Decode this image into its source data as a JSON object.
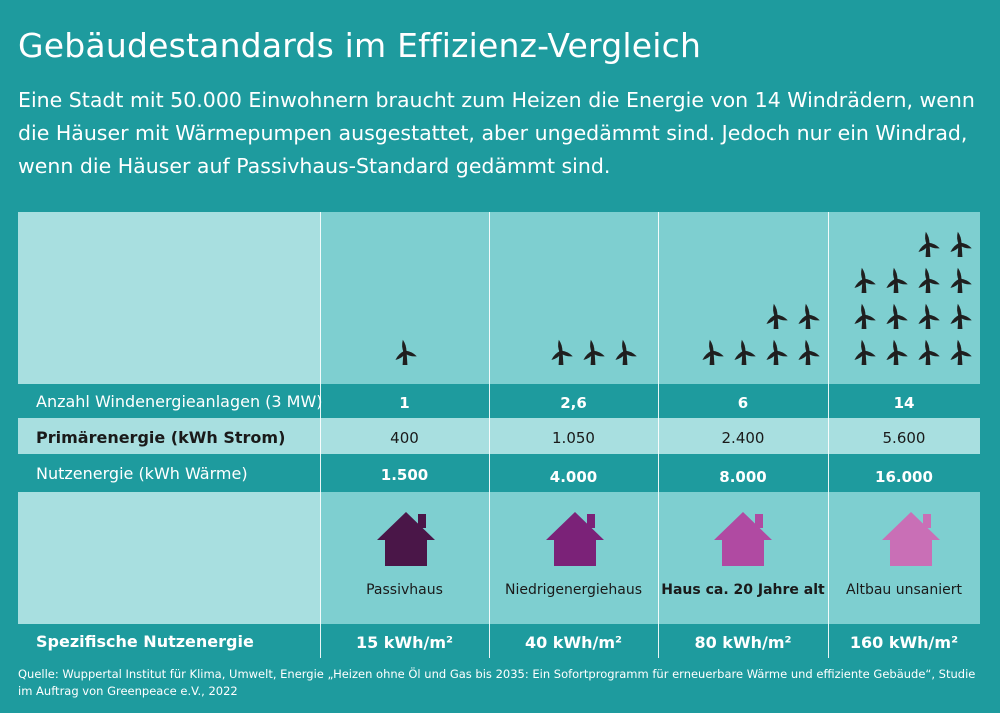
{
  "title": "Gebäudestandards im Effizienz-Vergleich",
  "subtitle": "Eine Stadt mit 50.000 Einwohnern braucht zum Heizen die Energie von 14 Windrädern, wenn die Häuser mit Wärmepumpen ausgestattet, aber ungedämmt sind. Jedoch nur ein Windrad, wenn die Häuser auf Passivhaus-Standard gedämmt sind.",
  "source": "Quelle: Wuppertal Institut für Klima, Umwelt, Energie „Heizen ohne Öl und Gas bis 2035: Ein Sofortprogramm für erneuerbare Wärme und effiziente Gebäude“, Studie im Auftrag von Greenpeace e.V., 2022",
  "icons": {
    "turbine": "wind-turbine-icon",
    "house": "house-icon"
  },
  "colors": {
    "background": "#1e9b9e",
    "label_column": "#a8dfe0",
    "data_columns": "#7ecfd0",
    "band_light": "#a8dfe0",
    "turbine": "#1f1f1f",
    "house_colors": [
      "#4a1648",
      "#7b2278",
      "#b04aa2",
      "#c96fb6"
    ]
  },
  "chart_data": {
    "type": "table",
    "categories": [
      "Passivhaus",
      "Niedrigenergiehaus",
      "Haus ca. 20 Jahre alt",
      "Altbau unsaniert"
    ],
    "rows": [
      {
        "label": "Anzahl Windenergieanlagen (3 MW)",
        "values": [
          "1",
          "2,6",
          "6",
          "14"
        ],
        "icon_counts": [
          1,
          3,
          6,
          14
        ]
      },
      {
        "label": "Primärenergie (kWh Strom)",
        "values": [
          "400",
          "1.050",
          "2.400",
          "5.600"
        ]
      },
      {
        "label": "Nutzenergie (kWh Wärme)",
        "values": [
          "1.500",
          "4.000",
          "8.000",
          "16.000"
        ]
      },
      {
        "label": "Spezifische Nutzenergie",
        "values": [
          "15 kWh/m²",
          "40 kWh/m²",
          "80 kWh/m²",
          "160 kWh/m²"
        ]
      }
    ]
  }
}
